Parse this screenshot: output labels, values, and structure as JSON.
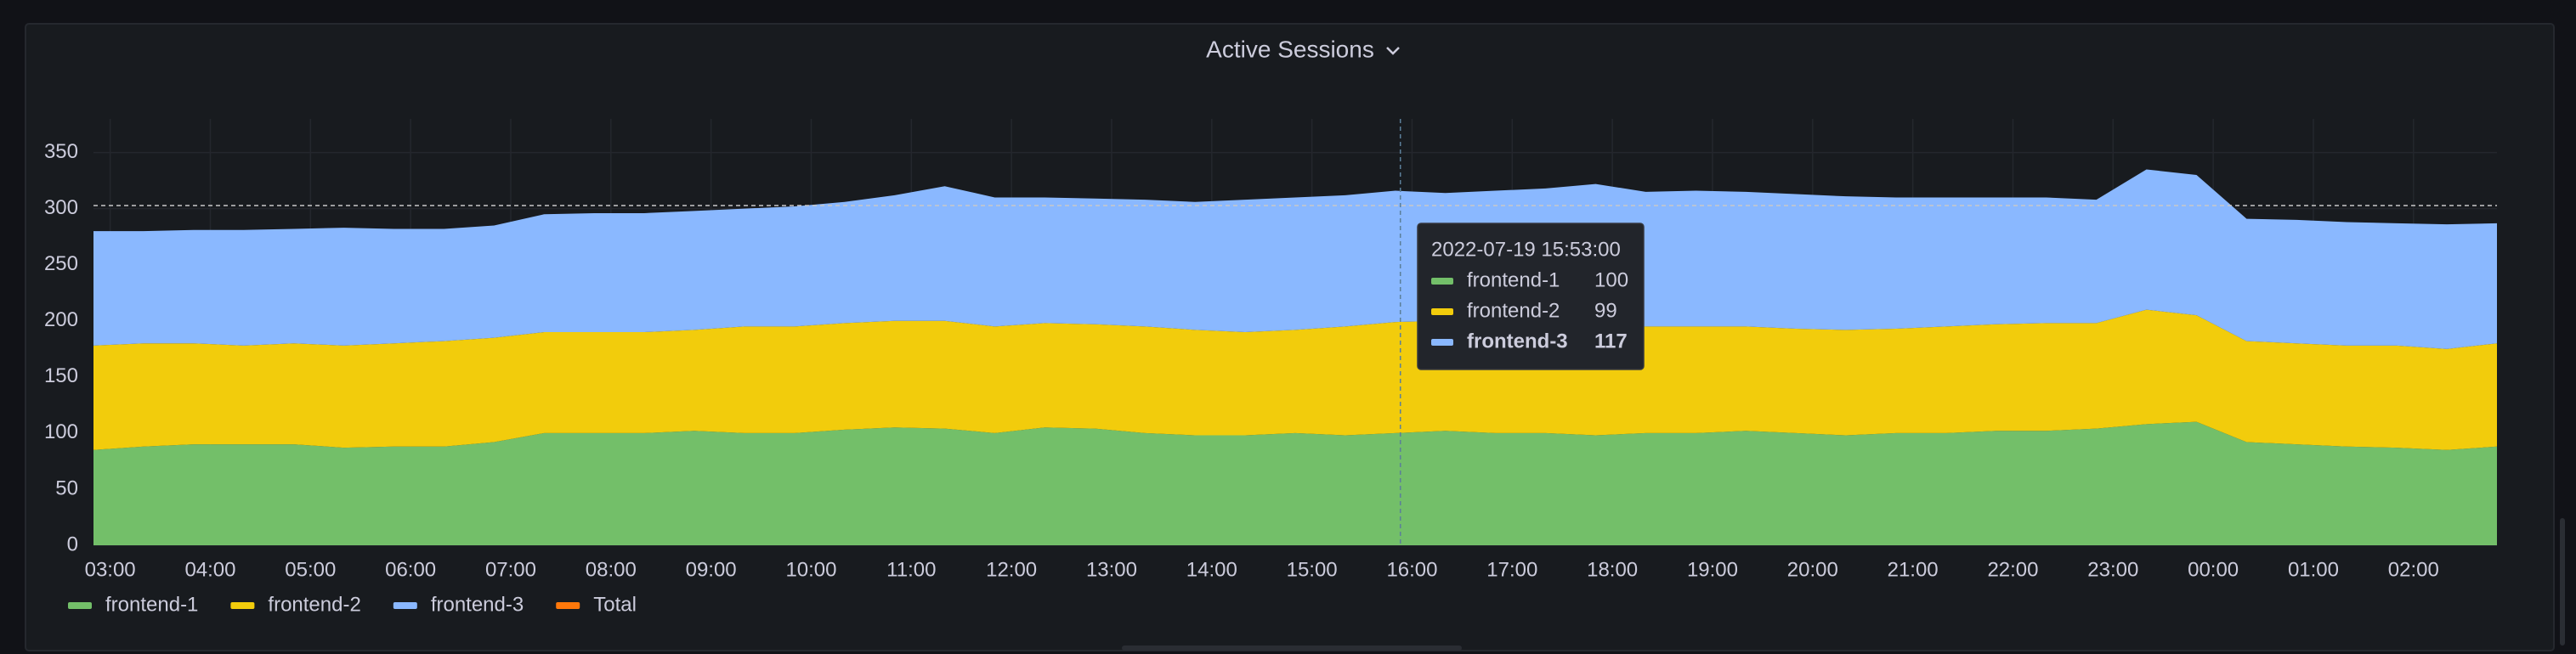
{
  "chart_data": {
    "type": "stacked-area",
    "title": "Active Sessions",
    "x": [
      "02:50",
      "03:20",
      "03:50",
      "04:20",
      "04:50",
      "05:20",
      "05:50",
      "06:20",
      "06:50",
      "07:20",
      "07:50",
      "08:20",
      "08:50",
      "09:20",
      "09:50",
      "10:20",
      "10:50",
      "11:20",
      "11:50",
      "12:20",
      "12:50",
      "13:20",
      "13:50",
      "14:20",
      "14:50",
      "15:20",
      "15:50",
      "16:20",
      "16:50",
      "17:20",
      "17:50",
      "18:20",
      "18:50",
      "19:20",
      "19:50",
      "20:20",
      "20:50",
      "21:20",
      "21:50",
      "22:20",
      "22:50",
      "23:20",
      "23:50",
      "00:20",
      "00:50",
      "01:20",
      "01:50",
      "02:20",
      "02:50"
    ],
    "series": [
      {
        "name": "frontend-1",
        "color": "#73bf69",
        "values": [
          85,
          88,
          90,
          90,
          90,
          87,
          88,
          88,
          92,
          100,
          100,
          100,
          102,
          100,
          100,
          103,
          105,
          104,
          100,
          105,
          104,
          100,
          98,
          98,
          100,
          98,
          100,
          102,
          100,
          100,
          98,
          100,
          100,
          102,
          100,
          98,
          100,
          100,
          102,
          102,
          104,
          108,
          110,
          92,
          90,
          88,
          87,
          85,
          88
        ]
      },
      {
        "name": "frontend-2",
        "color": "#f2cc0c",
        "values": [
          93,
          92,
          90,
          88,
          90,
          91,
          92,
          94,
          93,
          90,
          90,
          90,
          90,
          95,
          95,
          95,
          95,
          96,
          95,
          93,
          93,
          95,
          94,
          92,
          92,
          97,
          99,
          98,
          98,
          95,
          95,
          95,
          95,
          93,
          93,
          94,
          93,
          95,
          95,
          96,
          94,
          102,
          95,
          90,
          90,
          90,
          91,
          90,
          92
        ]
      },
      {
        "name": "frontend-3",
        "color": "#8ab8ff",
        "values": [
          102,
          100,
          101,
          103,
          102,
          105,
          102,
          100,
          100,
          105,
          106,
          106,
          106,
          105,
          107,
          108,
          112,
          120,
          115,
          112,
          112,
          113,
          114,
          118,
          118,
          117,
          117,
          114,
          118,
          123,
          129,
          120,
          121,
          120,
          120,
          119,
          117,
          115,
          113,
          112,
          110,
          125,
          125,
          109,
          110,
          110,
          109,
          111,
          107
        ]
      }
    ],
    "legend_extra": [
      {
        "name": "Total",
        "color": "#ff780a"
      }
    ],
    "xlim": [
      "02:50",
      "02:50"
    ],
    "xticks": [
      "03:00",
      "04:00",
      "05:00",
      "06:00",
      "07:00",
      "08:00",
      "09:00",
      "10:00",
      "11:00",
      "12:00",
      "13:00",
      "14:00",
      "15:00",
      "16:00",
      "17:00",
      "18:00",
      "19:00",
      "20:00",
      "21:00",
      "22:00",
      "23:00",
      "00:00",
      "01:00",
      "02:00"
    ],
    "ylim": [
      0,
      380
    ],
    "yticks": [
      0,
      50,
      100,
      150,
      200,
      250,
      300,
      350
    ],
    "grid": true,
    "tooltip": {
      "time": "2022-07-19 15:53:00",
      "x": "15:53",
      "items": [
        {
          "name": "frontend-1",
          "value": 100
        },
        {
          "name": "frontend-2",
          "value": 99
        },
        {
          "name": "frontend-3",
          "value": 117
        }
      ]
    }
  }
}
